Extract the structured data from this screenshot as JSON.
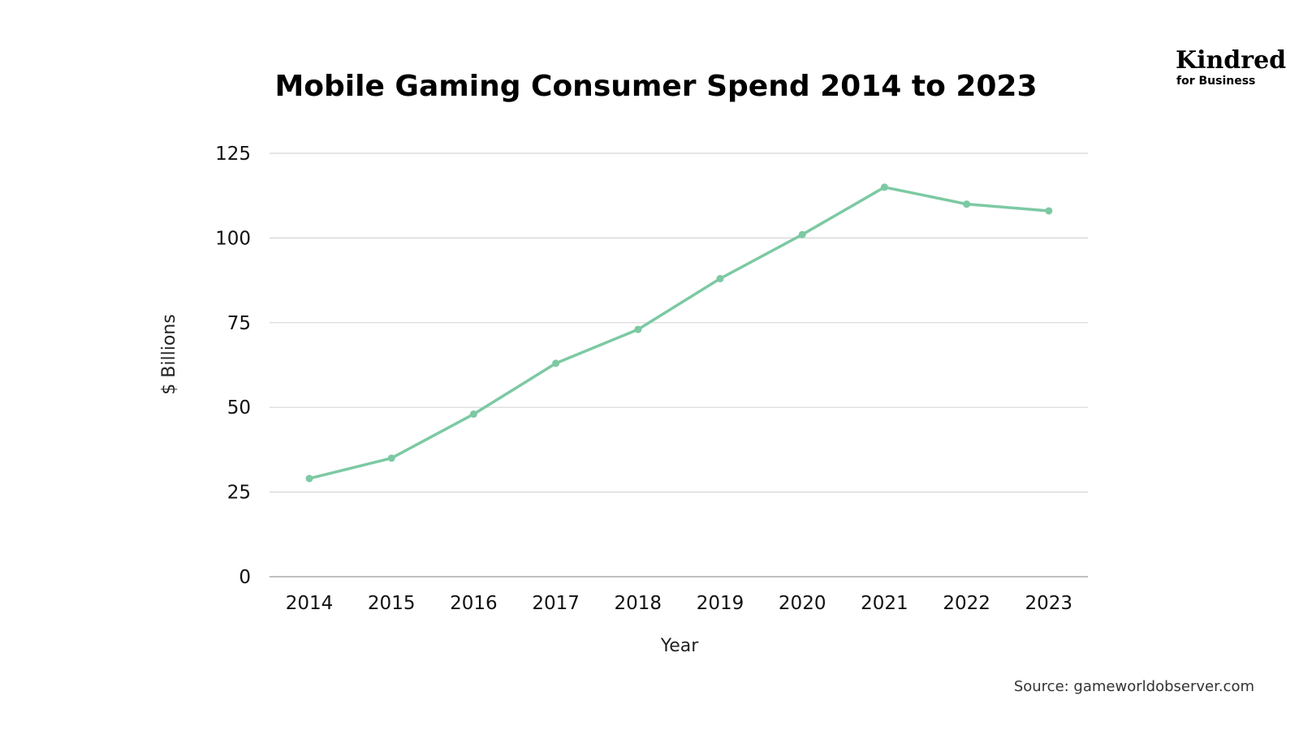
{
  "logo": {
    "name": "Kindred",
    "tagline": "for Business"
  },
  "source": "Source: gameworldobserver.com",
  "colors": {
    "line": "#7cc9a3",
    "grid": "#d6d6d6",
    "baseline": "#a8a8a8"
  },
  "chart_data": {
    "type": "line",
    "title": "Mobile Gaming Consumer Spend 2014 to 2023",
    "xlabel": "Year",
    "ylabel": "$ Billions",
    "categories": [
      "2014",
      "2015",
      "2016",
      "2017",
      "2018",
      "2019",
      "2020",
      "2021",
      "2022",
      "2023"
    ],
    "series": [
      {
        "values": [
          29,
          35,
          48,
          63,
          73,
          88,
          101,
          115,
          110,
          108
        ]
      }
    ],
    "yticks": [
      0,
      25,
      50,
      75,
      100,
      125
    ],
    "ylim": [
      0,
      125
    ],
    "grid": true,
    "markers": true,
    "legend": "none"
  }
}
